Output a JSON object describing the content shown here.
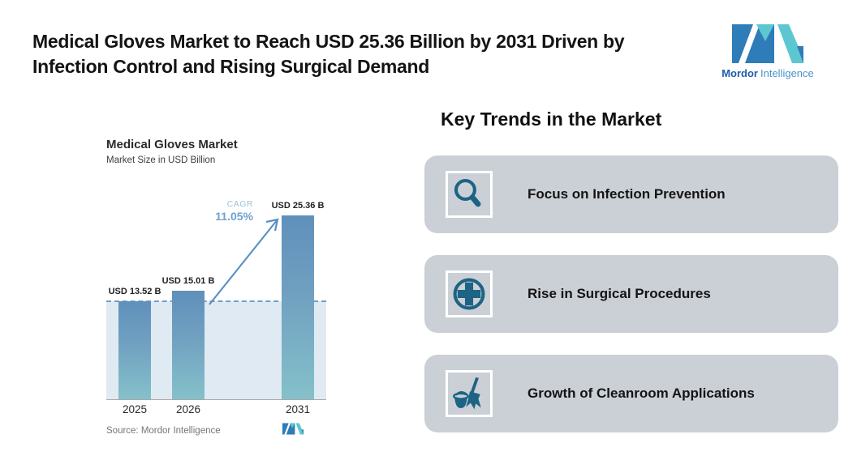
{
  "header": {
    "title_line1": "Medical Gloves Market to Reach USD 25.36 Billion by 2031 Driven by",
    "title_line2": "Infection Control and Rising Surgical Demand",
    "logo": {
      "brand_bold": "Mordor",
      "brand_regular": "Intelligence"
    }
  },
  "chart": {
    "title": "Medical Gloves Market",
    "subtitle": "Market Size in USD Billion",
    "cagr_label": "CAGR",
    "cagr_value": "11.05%",
    "source": "Source: Mordor Intelligence"
  },
  "chart_data": {
    "type": "bar",
    "title": "Medical Gloves Market",
    "subtitle": "Market Size in USD Billion",
    "categories": [
      "2025",
      "2026",
      "2031"
    ],
    "values": [
      13.52,
      15.01,
      25.36
    ],
    "value_labels": [
      "USD 13.52 B",
      "USD 15.01 B",
      "USD 25.36 B"
    ],
    "ylabel": "Market Size in USD Billion",
    "ylim": [
      0,
      25.36
    ],
    "grid": false,
    "legend": false,
    "annotations": [
      {
        "type": "growth-arrow",
        "label": "CAGR",
        "value": "11.05%",
        "from_category": "2026",
        "to_category": "2031"
      },
      {
        "type": "reference-line",
        "style": "dashed",
        "at_value": 13.52
      }
    ],
    "source": "Source: Mordor Intelligence"
  },
  "trends": {
    "heading": "Key Trends in the Market",
    "items": [
      {
        "icon": "magnifier-icon",
        "label": "Focus on Infection Prevention"
      },
      {
        "icon": "medical-cross-icon",
        "label": "Rise in Surgical Procedures"
      },
      {
        "icon": "cleaning-icon",
        "label": "Growth of Cleanroom Applications"
      }
    ]
  },
  "colors": {
    "bar_top": "#5f90bb",
    "bar_bottom": "#85c0ca",
    "shaded_area": "#e0eaf2",
    "dashed_line": "#70a0cb",
    "arrow": "#5b90c0",
    "cagr_text": "#6fa1cf",
    "card_background": "#cbd0d7",
    "trend_icon": "#1d6384",
    "logo_blue": "#2e7cb8",
    "logo_teal": "#5cc7d1",
    "title_text": "#141414"
  }
}
